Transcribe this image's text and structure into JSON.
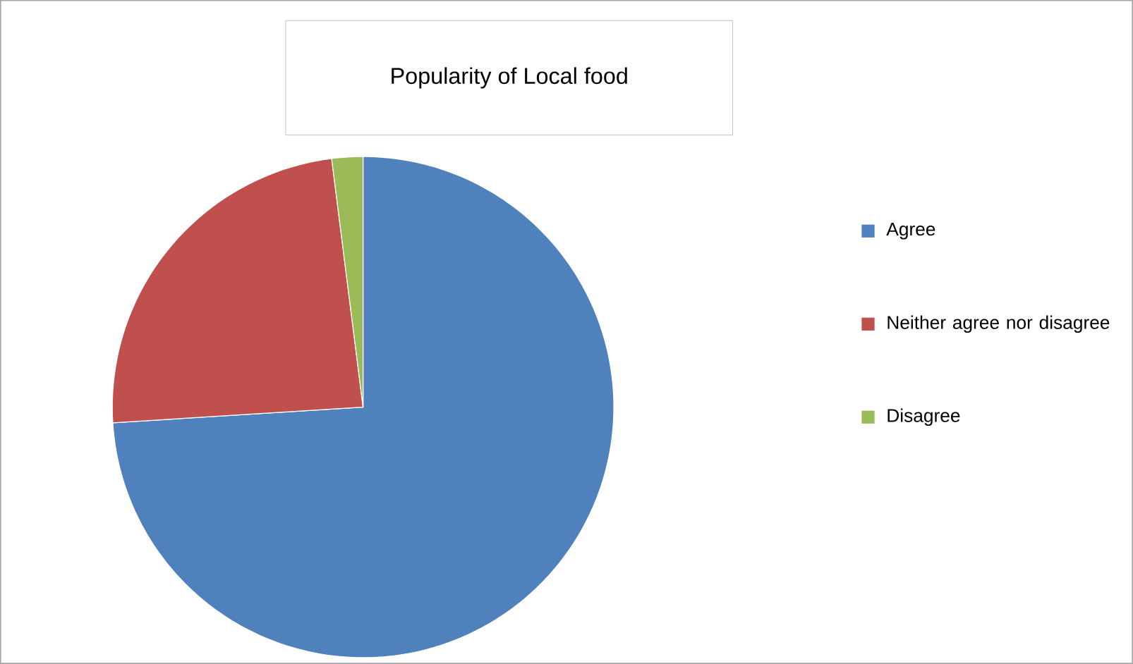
{
  "chart_data": {
    "type": "pie",
    "title": "Popularity of Local food",
    "categories": [
      "Agree",
      "Neither agree nor disagree",
      "Disagree"
    ],
    "values": [
      74,
      24,
      2
    ],
    "colors": [
      "#4f81bd",
      "#c0504d",
      "#9bbb59"
    ],
    "legend": "right"
  }
}
